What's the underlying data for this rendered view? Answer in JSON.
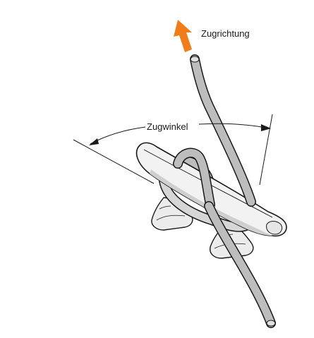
{
  "labels": {
    "pull_direction": "Zugrichtung",
    "pull_angle": "Zugwinkel"
  },
  "colors": {
    "arrow": "#f07d1a",
    "rope_fill": "#bdbdbd",
    "cleat_fill": "#f2f2f2",
    "cleat_shade": "#c9c9c9",
    "outline": "#1a1a1a",
    "background": "#ffffff"
  }
}
